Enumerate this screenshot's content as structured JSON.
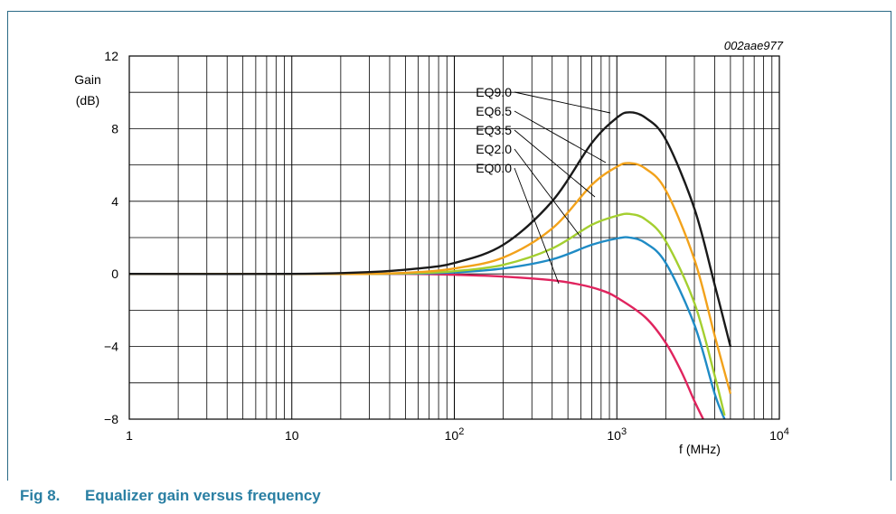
{
  "figure_id": "002aae977",
  "caption": {
    "number": "Fig 8.",
    "title": "Equalizer gain versus frequency"
  },
  "colors": {
    "frame": "#2a6a86",
    "caption": "#2a7fa3",
    "grid": "#000000"
  },
  "chart_data": {
    "type": "line",
    "xlabel": "f (MHz)",
    "ylabel": [
      "Gain",
      "(dB)"
    ],
    "xscale": "log",
    "xlim": [
      1,
      10000
    ],
    "ylim": [
      -8,
      12
    ],
    "grid": true,
    "x_ticks": [
      {
        "base": "1",
        "exp": ""
      },
      {
        "base": "10",
        "exp": ""
      },
      {
        "base": "10",
        "exp": "2"
      },
      {
        "base": "10",
        "exp": "3"
      },
      {
        "base": "10",
        "exp": "4"
      }
    ],
    "y_ticks": [
      "12",
      "8",
      "4",
      "0",
      "−4",
      "−8"
    ],
    "y_tick_values": [
      12,
      8,
      4,
      0,
      -4,
      -8
    ],
    "series": [
      {
        "name": "EQ9.0",
        "color": "#1a1a1a",
        "x": [
          1,
          10,
          30,
          60,
          100,
          200,
          400,
          700,
          1000,
          1200,
          1500,
          2000,
          3000,
          4000,
          5000
        ],
        "y": [
          0,
          0,
          0.1,
          0.3,
          0.6,
          1.6,
          4.0,
          7.2,
          8.6,
          8.9,
          8.6,
          7.4,
          3.6,
          -0.6,
          -4.0
        ]
      },
      {
        "name": "EQ6.5",
        "color": "#f2a21b",
        "x": [
          1,
          10,
          30,
          60,
          100,
          200,
          400,
          700,
          1000,
          1200,
          1500,
          2000,
          3000,
          4000,
          5000
        ],
        "y": [
          0,
          0,
          0,
          0.1,
          0.3,
          0.9,
          2.5,
          4.9,
          5.9,
          6.1,
          5.8,
          4.6,
          0.8,
          -3.4,
          -6.6
        ]
      },
      {
        "name": "EQ3.5",
        "color": "#a4cf30",
        "x": [
          1,
          10,
          30,
          60,
          100,
          200,
          400,
          700,
          1000,
          1200,
          1500,
          2000,
          3000,
          4000,
          4600
        ],
        "y": [
          0,
          0,
          0,
          0.05,
          0.15,
          0.5,
          1.4,
          2.7,
          3.2,
          3.3,
          3.0,
          1.8,
          -1.6,
          -5.6,
          -7.8
        ]
      },
      {
        "name": "EQ2.0",
        "color": "#1f8bc5",
        "x": [
          1,
          10,
          30,
          60,
          100,
          200,
          400,
          700,
          1000,
          1200,
          1500,
          2000,
          3000,
          4000,
          4600
        ],
        "y": [
          0,
          0,
          0,
          0.02,
          0.08,
          0.3,
          0.8,
          1.6,
          1.95,
          2.0,
          1.7,
          0.6,
          -2.8,
          -6.6,
          -8
        ]
      },
      {
        "name": "EQ0.0",
        "color": "#e0245e",
        "x": [
          1,
          10,
          50,
          100,
          200,
          400,
          600,
          800,
          1000,
          1500,
          2000,
          2500,
          3000,
          3400
        ],
        "y": [
          0,
          0,
          0,
          -0.05,
          -0.15,
          -0.35,
          -0.6,
          -0.9,
          -1.3,
          -2.4,
          -3.8,
          -5.4,
          -7.0,
          -8
        ]
      }
    ]
  }
}
